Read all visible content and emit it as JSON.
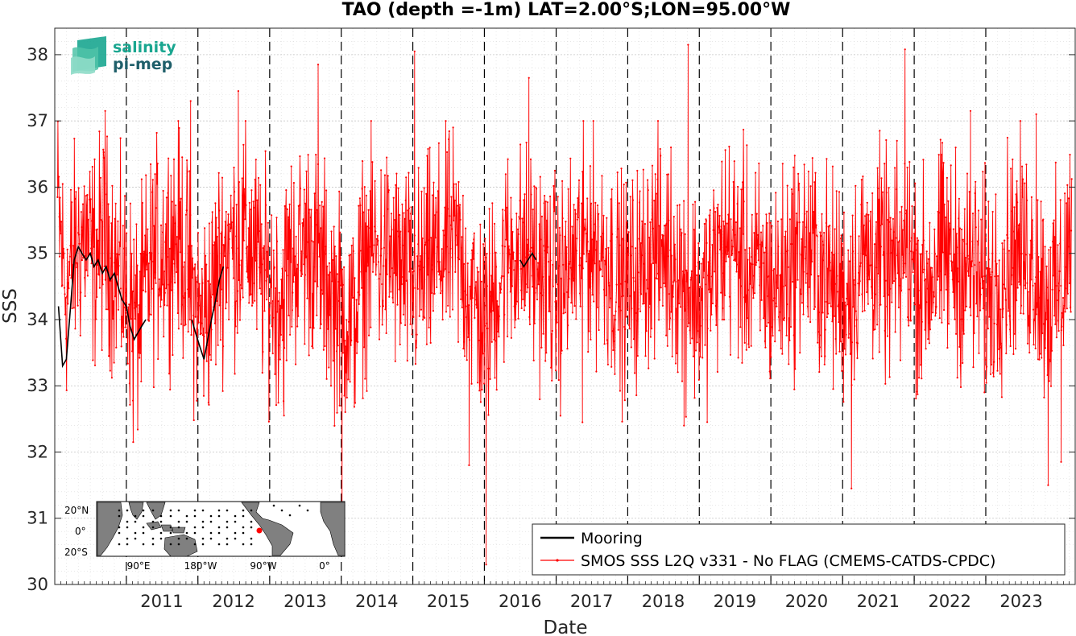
{
  "chart_data": {
    "type": "line",
    "title": "TAO (depth =-1m) LAT=2.00°S;LON=95.00°W",
    "xlabel": "Date",
    "ylabel": "SSS",
    "xlim": [
      "2010-01-01",
      "2024-04-01"
    ],
    "ylim": [
      30,
      38.4
    ],
    "yticks": [
      30,
      31,
      32,
      33,
      34,
      35,
      36,
      37,
      38
    ],
    "xticks": [
      "2011",
      "2012",
      "2013",
      "2014",
      "2015",
      "2016",
      "2017",
      "2018",
      "2019",
      "2020",
      "2021",
      "2022",
      "2023"
    ],
    "grid": true,
    "year_boundaries": [
      "2011-01-01",
      "2012-01-01",
      "2013-01-01",
      "2014-01-01",
      "2015-01-01",
      "2016-01-01",
      "2017-01-01",
      "2018-01-01",
      "2019-01-01",
      "2020-01-01",
      "2021-01-01",
      "2022-01-01",
      "2023-01-01"
    ],
    "legend_position": "bottom-right",
    "series": [
      {
        "name": "Mooring",
        "color": "#000000",
        "style": "line",
        "segments": [
          {
            "x": [
              "2010-01-20",
              "2010-02-10",
              "2010-03-01",
              "2010-03-20",
              "2010-04-10",
              "2010-05-01",
              "2010-05-20",
              "2010-06-10",
              "2010-07-01",
              "2010-07-20",
              "2010-08-10",
              "2010-09-01",
              "2010-09-20",
              "2010-10-10",
              "2010-11-01",
              "2010-11-20",
              "2010-12-10",
              "2011-01-01",
              "2011-01-20",
              "2011-02-10",
              "2011-03-01",
              "2011-03-20",
              "2011-04-10"
            ],
            "y": [
              34.2,
              33.3,
              33.4,
              34.1,
              34.9,
              35.1,
              35.0,
              34.9,
              35.0,
              34.8,
              34.9,
              34.7,
              34.8,
              34.6,
              34.7,
              34.5,
              34.3,
              34.2,
              33.9,
              33.7,
              33.8,
              33.9,
              34.0
            ]
          },
          {
            "x": [
              "2011-12-01",
              "2011-12-20",
              "2012-01-10",
              "2012-02-01",
              "2012-02-20",
              "2012-03-10",
              "2012-04-01",
              "2012-04-20",
              "2012-05-10"
            ],
            "y": [
              34.0,
              33.8,
              33.6,
              33.4,
              33.7,
              34.0,
              34.3,
              34.6,
              34.8
            ]
          },
          {
            "x": [
              "2016-07-01",
              "2016-07-20",
              "2016-08-10",
              "2016-09-01",
              "2016-09-20"
            ],
            "y": [
              34.9,
              34.8,
              34.9,
              35.0,
              34.9
            ]
          }
        ]
      },
      {
        "name": "SMOS SSS L2Q v331 - No FLAG  (CMEMS-CATDS-CPDC)",
        "color": "#ff0000",
        "style": "line-with-points",
        "note_sampling": "dense quasi-daily noisy series, mean ≈ 34.9",
        "x": [
          "2010-01-15",
          "2010-03-01",
          "2010-04-15",
          "2010-06-01",
          "2010-07-15",
          "2010-09-01",
          "2010-10-15",
          "2010-12-01",
          "2011-01-15",
          "2011-03-01",
          "2011-04-15",
          "2011-06-01",
          "2011-07-15",
          "2011-09-01",
          "2011-10-15",
          "2011-12-01",
          "2012-01-15",
          "2012-03-01",
          "2012-04-15",
          "2012-06-01",
          "2012-07-15",
          "2012-09-01",
          "2012-10-15",
          "2012-12-01",
          "2013-01-15",
          "2013-03-01",
          "2013-04-15",
          "2013-06-01",
          "2013-07-15",
          "2013-09-01",
          "2013-10-15",
          "2013-12-01",
          "2014-01-15",
          "2014-03-01",
          "2014-04-15",
          "2014-06-01",
          "2014-07-15",
          "2014-09-01",
          "2014-10-15",
          "2014-12-01",
          "2015-01-15",
          "2015-03-01",
          "2015-04-15",
          "2015-06-01",
          "2015-07-15",
          "2015-09-01",
          "2015-10-15",
          "2015-12-01",
          "2016-01-15",
          "2016-03-01",
          "2016-04-15",
          "2016-06-01",
          "2016-07-15",
          "2016-09-01",
          "2016-10-15",
          "2016-12-01",
          "2017-01-15",
          "2017-03-01",
          "2017-04-15",
          "2017-06-01",
          "2017-07-15",
          "2017-09-01",
          "2017-10-15",
          "2017-12-01",
          "2018-01-15",
          "2018-03-01",
          "2018-04-15",
          "2018-06-01",
          "2018-07-15",
          "2018-09-01",
          "2018-10-15",
          "2018-12-01",
          "2019-01-15",
          "2019-03-01",
          "2019-04-15",
          "2019-06-01",
          "2019-07-15",
          "2019-09-01",
          "2019-10-15",
          "2019-12-01",
          "2020-01-15",
          "2020-03-01",
          "2020-04-15",
          "2020-06-01",
          "2020-07-15",
          "2020-09-01",
          "2020-10-15",
          "2020-12-01",
          "2021-01-15",
          "2021-03-01",
          "2021-04-15",
          "2021-06-01",
          "2021-07-15",
          "2021-09-01",
          "2021-10-15",
          "2021-12-01",
          "2022-01-15",
          "2022-03-01",
          "2022-04-15",
          "2022-06-01",
          "2022-07-15",
          "2022-09-01",
          "2022-10-15",
          "2022-12-01",
          "2023-01-15",
          "2023-03-01",
          "2023-04-15",
          "2023-06-01",
          "2023-07-15",
          "2023-09-01",
          "2023-10-15",
          "2023-12-01",
          "2024-01-15",
          "2024-03-15"
        ],
        "y": [
          35.7,
          34.4,
          35.0,
          35.3,
          34.9,
          35.2,
          35.0,
          34.6,
          34.3,
          33.9,
          34.6,
          35.0,
          35.1,
          35.3,
          35.1,
          34.4,
          34.0,
          34.2,
          34.8,
          35.2,
          35.1,
          35.3,
          35.0,
          34.6,
          34.5,
          34.3,
          34.9,
          35.0,
          35.2,
          34.9,
          34.6,
          34.3,
          34.1,
          33.9,
          34.7,
          35.1,
          34.9,
          35.0,
          34.8,
          34.6,
          34.5,
          34.7,
          34.9,
          35.0,
          35.2,
          34.9,
          34.5,
          34.1,
          33.9,
          34.5,
          34.9,
          35.1,
          35.0,
          34.9,
          34.8,
          34.6,
          34.4,
          34.7,
          35.0,
          35.2,
          35.1,
          35.0,
          34.7,
          34.5,
          34.5,
          34.7,
          35.0,
          35.1,
          35.0,
          34.9,
          34.6,
          34.4,
          34.3,
          34.6,
          35.0,
          35.2,
          35.0,
          34.8,
          34.7,
          34.6,
          34.5,
          34.6,
          34.9,
          35.1,
          35.0,
          34.8,
          34.6,
          34.5,
          34.4,
          34.6,
          34.9,
          35.0,
          34.9,
          34.7,
          34.8,
          35.2,
          34.6,
          34.5,
          34.8,
          35.0,
          34.9,
          34.8,
          34.7,
          34.6,
          34.4,
          34.6,
          34.9,
          35.1,
          35.0,
          34.8,
          34.5,
          34.3,
          34.4,
          35.4
        ]
      }
    ],
    "extremes": [
      {
        "x": "2015-01-10",
        "y": 38.05
      },
      {
        "x": "2013-09-05",
        "y": 37.85
      },
      {
        "x": "2018-11-05",
        "y": 38.15
      },
      {
        "x": "2021-11-15",
        "y": 38.08
      },
      {
        "x": "2012-07-25",
        "y": 37.45
      },
      {
        "x": "2016-08-15",
        "y": 37.65
      },
      {
        "x": "2011-11-25",
        "y": 37.3
      },
      {
        "x": "2010-09-15",
        "y": 37.15
      },
      {
        "x": "2022-10-15",
        "y": 37.15
      },
      {
        "x": "2023-09-15",
        "y": 37.1
      },
      {
        "x": "2014-01-05",
        "y": 30.85
      },
      {
        "x": "2016-01-10",
        "y": 30.3
      },
      {
        "x": "2015-10-15",
        "y": 31.8
      },
      {
        "x": "2021-02-15",
        "y": 31.45
      },
      {
        "x": "2023-11-15",
        "y": 31.5
      },
      {
        "x": "2024-01-20",
        "y": 31.85
      },
      {
        "x": "2011-02-05",
        "y": 32.15
      },
      {
        "x": "2017-05-15",
        "y": 32.45
      },
      {
        "x": "2018-10-15",
        "y": 32.4
      },
      {
        "x": "2013-03-15",
        "y": 32.55
      },
      {
        "x": "2022-12-25",
        "y": 32.9
      }
    ]
  },
  "legend": {
    "mooring_label": "Mooring",
    "smos_label": "SMOS SSS L2Q v331 - No FLAG  (CMEMS-CATDS-CPDC)"
  },
  "logo": {
    "line1": "salinity",
    "line2": "pi-mep",
    "color1": "#1aa690",
    "color2": "#1f5f6a"
  },
  "inset_map": {
    "lat_labels": [
      "20°N",
      "0°",
      "20°S"
    ],
    "lon_labels": [
      "90°E",
      "180°W",
      "90°W",
      "0°"
    ],
    "land_color": "#808080",
    "ocean_color": "#ffffff",
    "station_marker_color": "#ff0000"
  }
}
